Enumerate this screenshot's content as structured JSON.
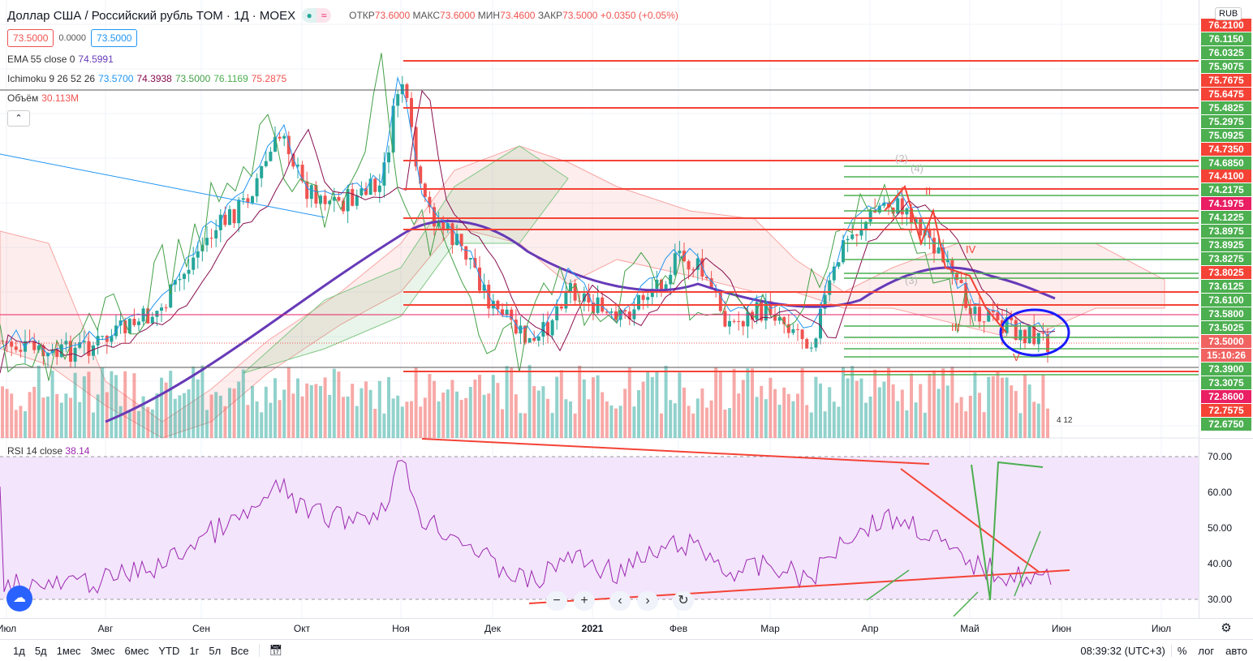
{
  "header": {
    "symbol": "Доллар США / Российский рубль TOM · 1Д · MOEX",
    "status_dot": "●",
    "status_wave": "≈",
    "ohlc": [
      {
        "k": "ОТКР",
        "v": "73.6000"
      },
      {
        "k": "МАКС",
        "v": "73.6000"
      },
      {
        "k": "МИН",
        "v": "73.4600"
      },
      {
        "k": "ЗАКР",
        "v": "73.5000"
      }
    ],
    "change": "+0.0350 (+0.05%)",
    "bid": "73.5000",
    "spread": "0.0000",
    "ask": "73.5000"
  },
  "indicators": {
    "ema": {
      "label": "EMA 55 close 0",
      "value": "74.5991"
    },
    "ichimoku": {
      "label": "Ichimoku 9 26 52 26",
      "values": [
        "73.5700",
        "74.3938",
        "73.5000",
        "76.1169",
        "75.2875"
      ]
    },
    "volume": {
      "label": "Объём",
      "value": "30.113M"
    },
    "collapse": "⌃"
  },
  "price_axis": {
    "currency": "RUB",
    "labels": [
      {
        "v": "76.2100",
        "c": "#f44336"
      },
      {
        "v": "76.1150",
        "c": "#4caf50"
      },
      {
        "v": "76.0325",
        "c": "#4caf50"
      },
      {
        "v": "75.9075",
        "c": "#4caf50"
      },
      {
        "v": "75.7675",
        "c": "#f44336"
      },
      {
        "v": "75.6475",
        "c": "#f44336"
      },
      {
        "v": "75.4825",
        "c": "#4caf50"
      },
      {
        "v": "75.2975",
        "c": "#4caf50"
      },
      {
        "v": "75.0925",
        "c": "#4caf50"
      },
      {
        "v": "74.7350",
        "c": "#f44336"
      },
      {
        "v": "74.6850",
        "c": "#4caf50"
      },
      {
        "v": "74.4100",
        "c": "#f44336"
      },
      {
        "v": "74.2175",
        "c": "#4caf50"
      },
      {
        "v": "74.1975",
        "c": "#e91e63"
      },
      {
        "v": "74.1225",
        "c": "#4caf50"
      },
      {
        "v": "73.8975",
        "c": "#4caf50"
      },
      {
        "v": "73.8925",
        "c": "#4caf50"
      },
      {
        "v": "73.8275",
        "c": "#4caf50"
      },
      {
        "v": "73.8025",
        "c": "#f44336"
      },
      {
        "v": "73.6125",
        "c": "#4caf50"
      },
      {
        "v": "73.6100",
        "c": "#4caf50"
      },
      {
        "v": "73.5800",
        "c": "#4caf50"
      },
      {
        "v": "73.5025",
        "c": "#4caf50"
      },
      {
        "v": "73.5000",
        "c": "#ef5350"
      },
      {
        "v": "15:10:26",
        "c": "#ef5350"
      },
      {
        "v": "73.3900",
        "c": "#4caf50"
      },
      {
        "v": "73.3075",
        "c": "#4caf50"
      },
      {
        "v": "72.8600",
        "c": "#e91e63"
      },
      {
        "v": "72.7575",
        "c": "#f44336"
      },
      {
        "v": "72.6750",
        "c": "#4caf50"
      }
    ]
  },
  "rsi": {
    "label": "RSI 14 close",
    "value": "38.14",
    "ticks": [
      "70.00",
      "60.00",
      "50.00",
      "40.00",
      "30.00"
    ]
  },
  "time_axis": [
    "Июл",
    "Авг",
    "Сен",
    "Окт",
    "Ноя",
    "Дек",
    "2021",
    "Фев",
    "Мар",
    "Апр",
    "Май",
    "Июн",
    "Июл"
  ],
  "bottom": {
    "ranges": [
      "1д",
      "5д",
      "1мес",
      "3мес",
      "6мес",
      "YTD",
      "1г",
      "5л",
      "Все"
    ],
    "clock": "08:39:32 (UTC+3)",
    "percent": "%",
    "log": "лог",
    "auto": "авто"
  },
  "nav": {
    "zoom_out": "−",
    "zoom_in": "+",
    "left": "‹",
    "right": "›",
    "reset": "↻"
  },
  "labels": {
    "wave_numbers": [
      "(2)",
      "(4)",
      "(3)",
      "II",
      "III",
      "IV",
      "V"
    ],
    "flag": "4 12"
  },
  "colors": {
    "up": "#26a69a",
    "down": "#ef5350",
    "ema": "#673ab7",
    "rsi": "#9c27b0"
  }
}
